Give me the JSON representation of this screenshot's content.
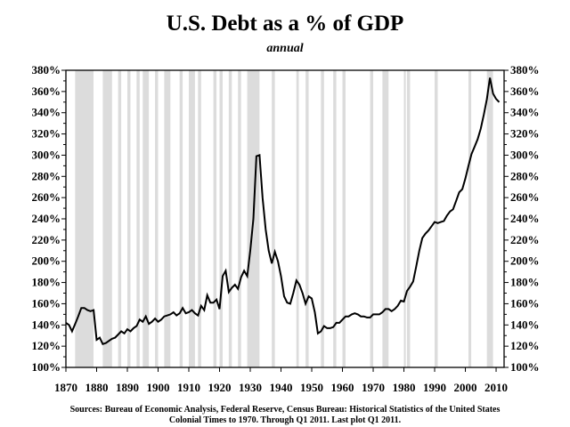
{
  "chart_data": {
    "type": "line",
    "title": "U.S. Debt as a % of GDP",
    "subtitle": "annual",
    "xlabel": "",
    "ylabel": "",
    "xlim": [
      1870,
      2012.6
    ],
    "ylim": [
      100,
      380
    ],
    "x_ticks": [
      "1870",
      "1880",
      "1890",
      "1900",
      "1910",
      "1920",
      "1930",
      "1940",
      "1950",
      "1960",
      "1970",
      "1980",
      "1990",
      "2000",
      "2010"
    ],
    "y_ticks": [
      "100%",
      "120%",
      "140%",
      "160%",
      "180%",
      "200%",
      "220%",
      "240%",
      "260%",
      "280%",
      "300%",
      "320%",
      "340%",
      "360%",
      "380%"
    ],
    "y_axis_both_sides": true,
    "grid": false,
    "line_color": "#000000",
    "recession_shading_color": "#dcdcdc",
    "recessions": [
      [
        1873,
        1879
      ],
      [
        1882,
        1885
      ],
      [
        1887,
        1888
      ],
      [
        1890,
        1891
      ],
      [
        1893,
        1894
      ],
      [
        1895,
        1897
      ],
      [
        1899,
        1900
      ],
      [
        1902,
        1904
      ],
      [
        1907,
        1908
      ],
      [
        1910,
        1912
      ],
      [
        1913,
        1914
      ],
      [
        1918,
        1919
      ],
      [
        1920,
        1921
      ],
      [
        1923,
        1924
      ],
      [
        1926,
        1927
      ],
      [
        1929,
        1933
      ],
      [
        1937,
        1938
      ],
      [
        1945,
        1945.8
      ],
      [
        1948,
        1949
      ],
      [
        1953,
        1954
      ],
      [
        1957,
        1958
      ],
      [
        1960,
        1961
      ],
      [
        1969,
        1970
      ],
      [
        1973,
        1975
      ],
      [
        1980,
        1980.6
      ],
      [
        1981,
        1982
      ],
      [
        1990,
        1991
      ],
      [
        2001,
        2001.9
      ],
      [
        2007,
        2009
      ]
    ],
    "x": [
      1870,
      1871,
      1872,
      1873,
      1874,
      1875,
      1876,
      1877,
      1878,
      1879,
      1880,
      1881,
      1882,
      1883,
      1884,
      1885,
      1886,
      1887,
      1888,
      1889,
      1890,
      1891,
      1892,
      1893,
      1894,
      1895,
      1896,
      1897,
      1898,
      1899,
      1900,
      1901,
      1902,
      1903,
      1904,
      1905,
      1906,
      1907,
      1908,
      1909,
      1910,
      1911,
      1912,
      1913,
      1914,
      1915,
      1916,
      1917,
      1918,
      1919,
      1920,
      1921,
      1922,
      1923,
      1924,
      1925,
      1926,
      1927,
      1928,
      1929,
      1930,
      1931,
      1932,
      1933,
      1934,
      1935,
      1936,
      1937,
      1938,
      1939,
      1940,
      1941,
      1942,
      1943,
      1944,
      1945,
      1946,
      1947,
      1948,
      1949,
      1950,
      1951,
      1952,
      1953,
      1954,
      1955,
      1956,
      1957,
      1958,
      1959,
      1960,
      1961,
      1962,
      1963,
      1964,
      1965,
      1966,
      1967,
      1968,
      1969,
      1970,
      1971,
      1972,
      1973,
      1974,
      1975,
      1976,
      1977,
      1978,
      1979,
      1980,
      1981,
      1982,
      1983,
      1984,
      1985,
      1986,
      1987,
      1988,
      1989,
      1990,
      1991,
      1992,
      1993,
      1994,
      1995,
      1996,
      1997,
      1998,
      1999,
      2000,
      2001,
      2002,
      2003,
      2004,
      2005,
      2006,
      2007,
      2008,
      2009,
      2010,
      2011
    ],
    "values": [
      142,
      140,
      134,
      141,
      148,
      156,
      156,
      154,
      153,
      154,
      126,
      128,
      122,
      123,
      125,
      127,
      128,
      131,
      134,
      132,
      136,
      134,
      137,
      139,
      145,
      143,
      148,
      141,
      143,
      146,
      143,
      145,
      148,
      149,
      150,
      152,
      149,
      151,
      156,
      151,
      152,
      154,
      151,
      149,
      158,
      154,
      168,
      161,
      161,
      164,
      155,
      186,
      191,
      171,
      175,
      178,
      174,
      185,
      191,
      186,
      210,
      240,
      299,
      300,
      260,
      230,
      210,
      198,
      209,
      200,
      186,
      167,
      161,
      160,
      170,
      182,
      178,
      170,
      160,
      167,
      165,
      152,
      132,
      134,
      139,
      137,
      137,
      138,
      142,
      142,
      145,
      148,
      148,
      150,
      151,
      150,
      148,
      148,
      147,
      147,
      150,
      150,
      150,
      152,
      155,
      155,
      153,
      155,
      158,
      163,
      162,
      172,
      176,
      181,
      195,
      210,
      222,
      226,
      229,
      233,
      237,
      236,
      237,
      238,
      243,
      247,
      249,
      257,
      265,
      268,
      278,
      290,
      301,
      308,
      315,
      325,
      338,
      353,
      373,
      358,
      353,
      350
    ],
    "source_note": [
      "Sources: Bureau of Economic Analysis, Federal Reserve, Census Bureau: Historical Statistics of the United States",
      "Colonial Times to 1970.   Through Q1 2011. Last plot Q1 2011."
    ]
  }
}
